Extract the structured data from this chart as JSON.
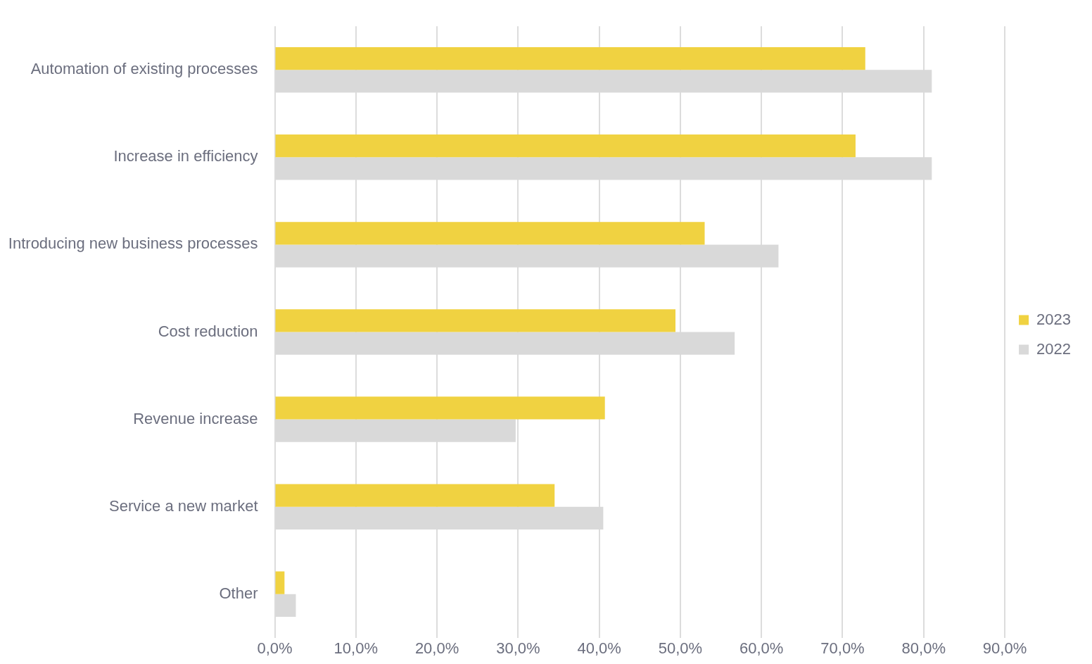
{
  "chart_data": {
    "type": "bar",
    "orientation": "horizontal",
    "categories": [
      "Automation of existing processes",
      "Increase in efficiency",
      "Introducing new business processes",
      "Cost reduction",
      "Revenue increase",
      "Service a new market",
      "Other"
    ],
    "series": [
      {
        "name": "2023",
        "color": "#f0d241",
        "values": [
          72.8,
          71.6,
          53.0,
          49.4,
          40.7,
          34.5,
          1.2
        ]
      },
      {
        "name": "2022",
        "color": "#d9d9d9",
        "values": [
          81.0,
          81.0,
          62.1,
          56.7,
          29.7,
          40.5,
          2.6
        ]
      }
    ],
    "xlim": [
      0,
      90
    ],
    "xticks": [
      {
        "value": 0,
        "label": "0,0%"
      },
      {
        "value": 10,
        "label": "10,0%"
      },
      {
        "value": 20,
        "label": "20,0%"
      },
      {
        "value": 30,
        "label": "30,0%"
      },
      {
        "value": 40,
        "label": "40,0%"
      },
      {
        "value": 50,
        "label": "50,0%"
      },
      {
        "value": 60,
        "label": "60,0%"
      },
      {
        "value": 70,
        "label": "70,0%"
      },
      {
        "value": 80,
        "label": "80,0%"
      },
      {
        "value": 90,
        "label": "90,0%"
      }
    ],
    "grid": "x",
    "legend": "right"
  }
}
